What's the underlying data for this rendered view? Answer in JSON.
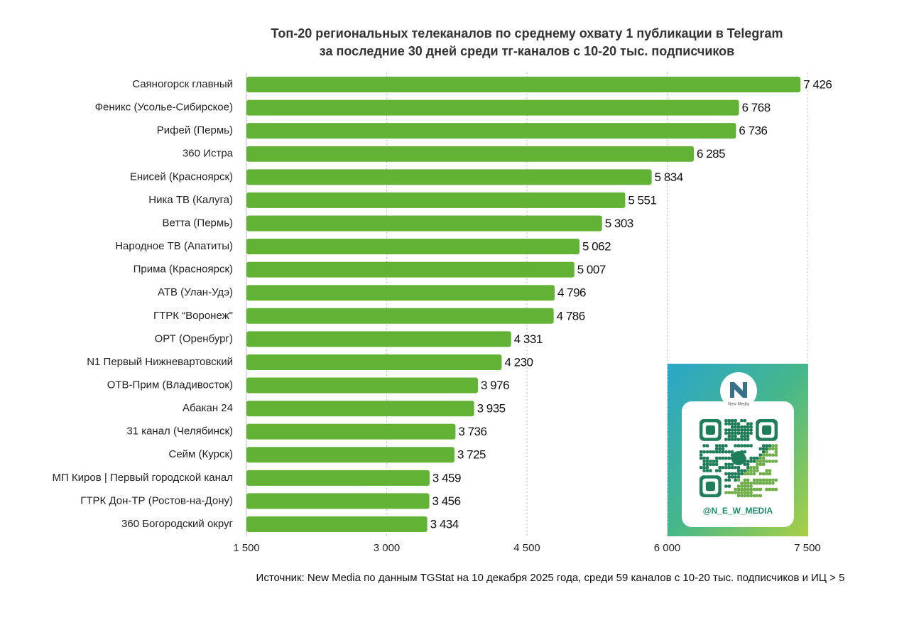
{
  "chart_data": {
    "type": "bar",
    "orientation": "horizontal",
    "title": "Топ-20 региональных телеканалов по среднему охвату 1 публикации в Telegram",
    "subtitle": "за последние 30 дней среди тг-каналов с 10-20 тыс. подписчиков",
    "categories": [
      "Саяногорск главный",
      "Феникс (Усолье-Сибирское)",
      "Рифей (Пермь)",
      "360 Истра",
      "Енисей (Красноярск)",
      "Ника ТВ (Калуга)",
      "Ветта (Пермь)",
      "Народное ТВ (Апатиты)",
      "Прима (Красноярск)",
      "АТВ (Улан-Удэ)",
      "ГТРК “Воронеж\"",
      "ОРТ (Оренбург)",
      "N1 Первый Нижневартовский",
      "ОТВ-Прим (Владивосток)",
      "Абакан 24",
      "31 канал (Челябинск)",
      "Сейм (Курск)",
      "МП Киров | Первый городской канал",
      "ГТРК Дон-ТР (Ростов-на-Дону)",
      "360 Богородский округ"
    ],
    "values": [
      7426,
      6768,
      6736,
      6285,
      5834,
      5551,
      5303,
      5062,
      5007,
      4796,
      4786,
      4331,
      4230,
      3976,
      3935,
      3736,
      3725,
      3459,
      3456,
      3434
    ],
    "value_labels": [
      "7 426",
      "6 768",
      "6 736",
      "6 285",
      "5 834",
      "5 551",
      "5 303",
      "5 062",
      "5 007",
      "4 796",
      "4 786",
      "4 331",
      "4 230",
      "3 976",
      "3 935",
      "3 736",
      "3 725",
      "3 459",
      "3 456",
      "3 434"
    ],
    "color": "#62b236",
    "xlim": [
      1500,
      7500
    ],
    "xticks": [
      {
        "value": 1500,
        "label": "1 500"
      },
      {
        "value": 3000,
        "label": "3 000"
      },
      {
        "value": 4500,
        "label": "4 500"
      },
      {
        "value": 6000,
        "label": "6 000"
      },
      {
        "value": 7500,
        "label": "7 500"
      }
    ],
    "grid": true,
    "source": "Источник: New Media по данным TGStat на 10 декабря 2025 года, среди 59 каналов с 10-20 тыс. подписчиков и ИЦ > 5"
  },
  "qr": {
    "logo_text": "New Media",
    "handle": "@N_E_W_MEDIA"
  }
}
